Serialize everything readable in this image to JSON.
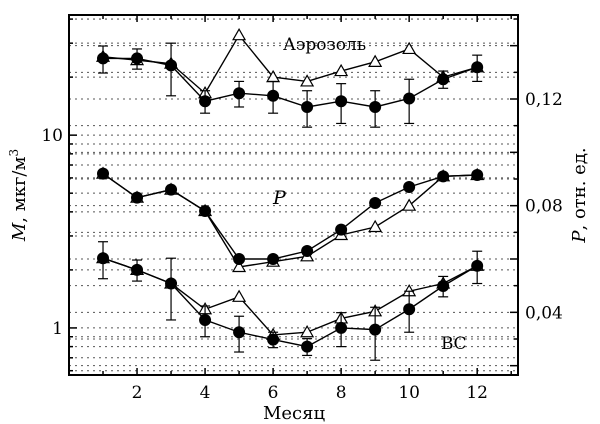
{
  "chart_data": {
    "type": "line",
    "title": "",
    "xlabel": "Месяц",
    "ylabel_left": "M, мкг/м³",
    "ylabel_left_parts": {
      "var": "M",
      "unit": ", мкг/м",
      "sup": "3"
    },
    "ylabel_right": "P, отн. ед.",
    "ylabel_right_parts": {
      "var": "P",
      "unit": ", отн. ед."
    },
    "x_ticks": [
      "2",
      "4",
      "6",
      "8",
      "10",
      "12"
    ],
    "xlim": [
      0,
      13.2
    ],
    "y_left_scale": "log",
    "y_left_ticks": [
      "1",
      "10"
    ],
    "y_left_lim": [
      0.57,
      42
    ],
    "y_right_ticks": [
      "0,04",
      "0,08",
      "0,12"
    ],
    "y_right_lim": [
      0.0165,
      0.1515
    ],
    "grid": "horizontal dotted",
    "annotations": {
      "aerosol": "Аэрозоль",
      "p": "P",
      "bc": "ВС"
    },
    "series": [
      {
        "group": "aerosol",
        "axis": "left",
        "marker": "filled-circle",
        "x": [
          1,
          2,
          3,
          4,
          5,
          6,
          7,
          8,
          9,
          10,
          11,
          12
        ],
        "y": [
          25,
          25,
          23,
          15,
          16.5,
          16,
          14,
          15,
          14,
          15.5,
          19.5,
          22.5
        ],
        "err": [
          4,
          3,
          7,
          2,
          2.5,
          3,
          3,
          3.5,
          3,
          4,
          2,
          3.5
        ]
      },
      {
        "group": "aerosol",
        "axis": "left",
        "marker": "open-triangle",
        "x": [
          1,
          2,
          3,
          4,
          5,
          6,
          7,
          8,
          9,
          10,
          11,
          12
        ],
        "y": [
          25.5,
          24.5,
          23.5,
          16.5,
          33,
          20,
          19,
          21.5,
          24,
          28,
          20,
          22.5
        ]
      },
      {
        "group": "p",
        "axis": "right",
        "marker": "filled-circle",
        "x": [
          1,
          2,
          3,
          4,
          5,
          6,
          7,
          8,
          9,
          10,
          11,
          12
        ],
        "y": [
          0.092,
          0.083,
          0.086,
          0.078,
          0.06,
          0.06,
          0.063,
          0.071,
          0.081,
          0.087,
          0.091,
          0.0915
        ]
      },
      {
        "group": "p",
        "axis": "right",
        "marker": "open-triangle",
        "x": [
          1,
          2,
          3,
          4,
          5,
          6,
          7,
          8,
          9,
          10,
          11,
          12
        ],
        "y": [
          0.092,
          0.083,
          0.086,
          0.078,
          0.057,
          0.059,
          0.061,
          0.069,
          0.072,
          0.08,
          0.091,
          0.0915
        ]
      },
      {
        "group": "bc",
        "axis": "left",
        "marker": "filled-circle",
        "x": [
          1,
          2,
          3,
          4,
          5,
          6,
          7,
          8,
          9,
          10,
          11,
          12
        ],
        "y": [
          2.3,
          2.0,
          1.7,
          1.1,
          0.95,
          0.87,
          0.8,
          1.0,
          0.98,
          1.25,
          1.65,
          2.1
        ],
        "err": [
          0.5,
          0.25,
          0.6,
          0.2,
          0.2,
          0.08,
          0.08,
          0.2,
          0.3,
          0.3,
          0.2,
          0.4
        ]
      },
      {
        "group": "bc",
        "axis": "left",
        "marker": "open-triangle",
        "x": [
          1,
          2,
          3,
          4,
          5,
          6,
          7,
          8,
          9,
          10,
          11,
          12
        ],
        "y": [
          2.3,
          2.0,
          1.7,
          1.25,
          1.45,
          0.92,
          0.95,
          1.12,
          1.22,
          1.55,
          1.7,
          2.1
        ]
      }
    ]
  }
}
